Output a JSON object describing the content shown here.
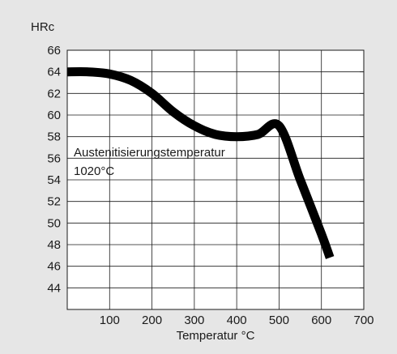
{
  "chart_data": {
    "type": "line",
    "ylabel": "HRc",
    "xlabel": "Temperatur °C",
    "xlim": [
      0,
      700
    ],
    "ylim": [
      42,
      66
    ],
    "x_ticks": [
      100,
      200,
      300,
      400,
      500,
      600,
      700
    ],
    "y_ticks": [
      44,
      46,
      48,
      50,
      52,
      54,
      56,
      58,
      60,
      62,
      64,
      66
    ],
    "grid": true,
    "annotation": [
      "Austenitisierungstemperatur",
      "1020°C"
    ],
    "series": [
      {
        "color": "#000000",
        "x": [
          0,
          50,
          100,
          150,
          200,
          250,
          300,
          350,
          400,
          450,
          500,
          550,
          600,
          620
        ],
        "y": [
          64,
          64,
          63.8,
          63.2,
          62,
          60.3,
          59,
          58.2,
          58,
          58.2,
          59,
          54,
          49,
          46.8
        ]
      }
    ]
  }
}
